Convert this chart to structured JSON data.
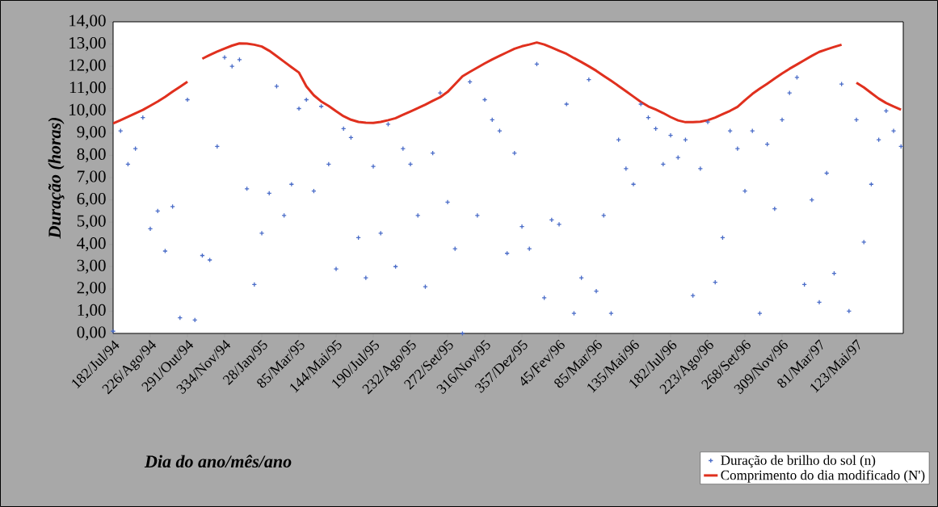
{
  "chart_data": {
    "type": "scatter",
    "xlabel": "Dia do ano/mês/ano",
    "ylabel": "Duração (horas)",
    "ylim": [
      0,
      14
    ],
    "categories": [
      "182/Jul/94",
      null,
      null,
      null,
      null,
      "226/Ago/94",
      null,
      null,
      null,
      null,
      "291/Out/94",
      null,
      null,
      null,
      null,
      "334/Nov/94",
      null,
      null,
      null,
      null,
      "28/Jan/95",
      null,
      null,
      null,
      null,
      "85/Mar/95",
      null,
      null,
      null,
      null,
      "144/Mai/95",
      null,
      null,
      null,
      null,
      "190/Jul/95",
      null,
      null,
      null,
      null,
      "232/Ago/95",
      null,
      null,
      null,
      null,
      "272/Set/95",
      null,
      null,
      null,
      null,
      "316/Nov/95",
      null,
      null,
      null,
      null,
      "357/Dez/95",
      null,
      null,
      null,
      null,
      "45/Fev/96",
      null,
      null,
      null,
      null,
      "85/Mar/96",
      null,
      null,
      null,
      null,
      "135/Mai/96",
      null,
      null,
      null,
      null,
      "182/Jul/96",
      null,
      null,
      null,
      null,
      "223/Ago/96",
      null,
      null,
      null,
      null,
      "268/Set/96",
      null,
      null,
      null,
      null,
      "309/Nov/96",
      null,
      null,
      null,
      null,
      "81/Mar/97",
      null,
      null,
      null,
      null,
      "123/Mai/97",
      null,
      null,
      null,
      null,
      null,
      null
    ],
    "yticks": [
      {
        "value": 0,
        "label": "0,00"
      },
      {
        "value": 1,
        "label": "1,00"
      },
      {
        "value": 2,
        "label": "2,00"
      },
      {
        "value": 3,
        "label": "3,00"
      },
      {
        "value": 4,
        "label": "4,00"
      },
      {
        "value": 5,
        "label": "5,00"
      },
      {
        "value": 6,
        "label": "6,00"
      },
      {
        "value": 7,
        "label": "7,00"
      },
      {
        "value": 8,
        "label": "8,00"
      },
      {
        "value": 9,
        "label": "9,00"
      },
      {
        "value": 10,
        "label": "10,00"
      },
      {
        "value": 11,
        "label": "11,00"
      },
      {
        "value": 12,
        "label": "12,00"
      },
      {
        "value": 13,
        "label": "13,00"
      },
      {
        "value": 14,
        "label": "14,00"
      }
    ],
    "legend": "bottom right",
    "series": [
      {
        "name": "Duração de brilho do sol (n)",
        "color": "#4a6cc8",
        "marker": "cross",
        "values": [
          0.1,
          9.1,
          7.6,
          8.3,
          9.7,
          4.7,
          5.5,
          3.7,
          5.7,
          0.7,
          10.5,
          0.6,
          3.5,
          3.3,
          8.4,
          12.4,
          12.0,
          12.3,
          6.5,
          2.2,
          4.5,
          6.3,
          11.1,
          5.3,
          6.7,
          10.1,
          10.5,
          6.4,
          10.2,
          7.6,
          2.9,
          9.2,
          8.8,
          4.3,
          2.5,
          7.5,
          4.5,
          9.4,
          3.0,
          8.3,
          7.6,
          5.3,
          2.1,
          8.1,
          10.8,
          5.9,
          3.8,
          0.0,
          11.3,
          5.3,
          10.5,
          9.6,
          9.1,
          3.6,
          8.1,
          4.8,
          3.8,
          12.1,
          1.6,
          5.1,
          4.9,
          10.3,
          0.9,
          2.5,
          11.4,
          1.9,
          5.3,
          0.9,
          8.7,
          7.4,
          6.7,
          10.3,
          9.7,
          9.2,
          7.6,
          8.9,
          7.9,
          8.7,
          1.7,
          7.4,
          9.5,
          2.3,
          4.3,
          9.1,
          8.3,
          6.4,
          9.1,
          0.9,
          8.5,
          5.6,
          9.6,
          10.8,
          11.5,
          2.2,
          6.0,
          1.4,
          7.2,
          2.7,
          11.2,
          1.0,
          9.6,
          4.1,
          6.7,
          8.7,
          10.0,
          9.1,
          8.4
        ]
      },
      {
        "name": "Comprimento do dia modificado (N')",
        "type": "line",
        "color": "#e0301e",
        "values": [
          9.43,
          9.58,
          9.73,
          9.89,
          10.04,
          10.23,
          10.42,
          10.63,
          10.86,
          11.08,
          11.31,
          null,
          12.34,
          12.51,
          12.66,
          12.8,
          12.93,
          13.03,
          13.02,
          12.97,
          12.89,
          12.7,
          12.46,
          12.21,
          11.96,
          11.72,
          11.1,
          10.7,
          10.42,
          10.22,
          9.98,
          9.76,
          9.6,
          9.5,
          9.47,
          9.46,
          9.5,
          9.58,
          9.67,
          9.82,
          9.97,
          10.12,
          10.28,
          10.45,
          10.61,
          10.85,
          11.2,
          11.55,
          11.75,
          11.94,
          12.13,
          12.31,
          12.47,
          12.63,
          12.79,
          12.9,
          12.98,
          13.07,
          12.98,
          12.84,
          12.7,
          12.56,
          12.37,
          12.19,
          12.0,
          11.8,
          11.57,
          11.35,
          11.12,
          10.88,
          10.64,
          10.4,
          10.2,
          10.06,
          9.9,
          9.72,
          9.57,
          9.49,
          9.49,
          9.51,
          9.58,
          9.7,
          9.85,
          10.0,
          10.18,
          10.48,
          10.76,
          11.0,
          11.22,
          11.45,
          11.68,
          11.89,
          12.08,
          12.28,
          12.47,
          12.65,
          12.76,
          12.87,
          12.97,
          null,
          11.26,
          11.05,
          10.8,
          10.55,
          10.35,
          10.2,
          10.05
        ]
      }
    ]
  }
}
